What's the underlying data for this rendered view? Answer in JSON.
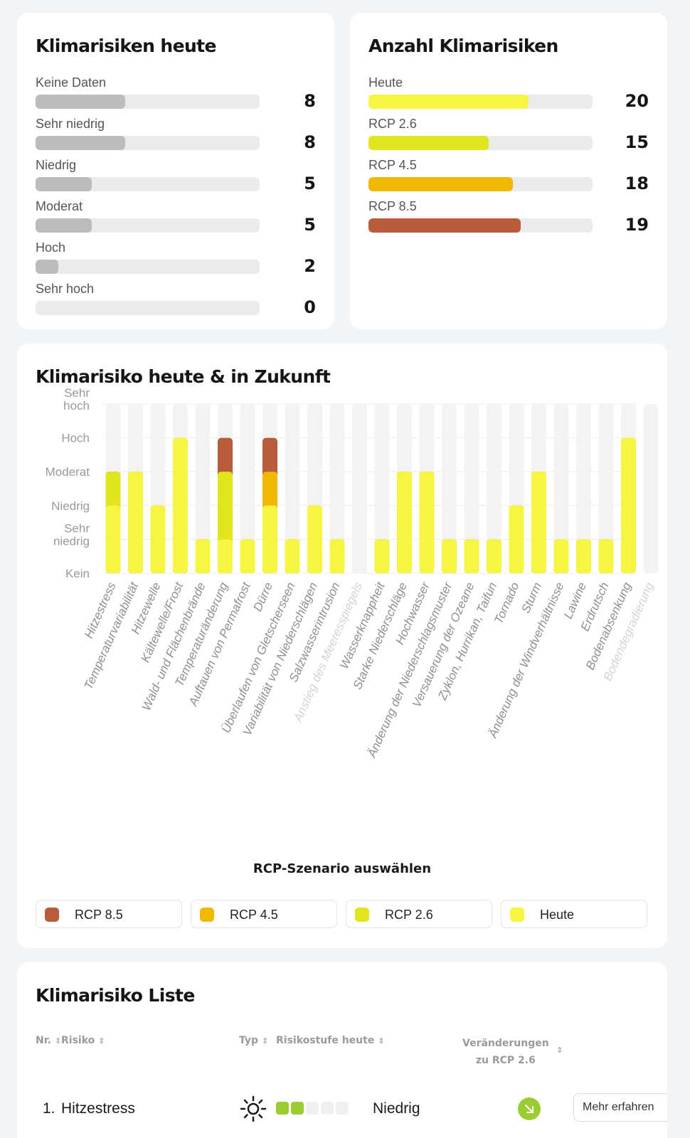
{
  "risks_today": {
    "title": "Klimarisiken heute",
    "max": 20,
    "items": [
      {
        "label": "Keine Daten",
        "value": 8
      },
      {
        "label": "Sehr niedrig",
        "value": 8
      },
      {
        "label": "Niedrig",
        "value": 5
      },
      {
        "label": "Moderat",
        "value": 5
      },
      {
        "label": "Hoch",
        "value": 2
      },
      {
        "label": "Sehr hoch",
        "value": 0
      }
    ],
    "bar_color": "#bcbcbc"
  },
  "risk_count": {
    "title": "Anzahl Klimarisiken",
    "max": 28,
    "items": [
      {
        "label": "Heute",
        "value": 20,
        "color": "#f5f542"
      },
      {
        "label": "RCP 2.6",
        "value": 15,
        "color": "#e0e51e"
      },
      {
        "label": "RCP 4.5",
        "value": 18,
        "color": "#f0b800"
      },
      {
        "label": "RCP 8.5",
        "value": 19,
        "color": "#b85c3c"
      }
    ]
  },
  "future_chart": {
    "title": "Klimarisiko heute & in Zukunft",
    "scenario_title": "RCP-Szenario auswählen",
    "legend": [
      {
        "label": "RCP 8.5",
        "color": "#b85c3c"
      },
      {
        "label": "RCP 4.5",
        "color": "#f0b800"
      },
      {
        "label": "RCP 2.6",
        "color": "#e0e51e"
      },
      {
        "label": "Heute",
        "color": "#f5f542"
      }
    ]
  },
  "chart_data": {
    "type": "bar",
    "title": "Klimarisiko heute & in Zukunft",
    "y_levels": [
      "Kein",
      "Sehr niedrig",
      "Niedrig",
      "Moderat",
      "Hoch",
      "Sehr hoch"
    ],
    "ylim": [
      0,
      5
    ],
    "categories": [
      "Hitzestress",
      "Temperaturvariabilität",
      "Hitzewelle",
      "Kältewelle/Frost",
      "Wald- und Flächenbrände",
      "Temperaturänderung",
      "Auftauen von Permafrost",
      "Dürre",
      "Überlaufen von Gletscherseen",
      "Variabilität von Niederschlägen",
      "Salzwasserintrusion",
      "Anstieg des Meeresspiegels",
      "Wasserknappheit",
      "Starke Niederschläge",
      "Hochwasser",
      "Änderung der Niederschlagsmuster",
      "Versauerung der Ozeane",
      "Zyklon, Hurrikan, Taifun",
      "Tornado",
      "Sturm",
      "Änderung der Windverhältnisse",
      "Lawine",
      "Erdrutsch",
      "Bodenabsenkung",
      "Bodendegradierung"
    ],
    "faded_categories": [
      "Anstieg des Meeresspiegels",
      "Bodendegradierung"
    ],
    "series": [
      {
        "name": "Heute",
        "color": "#f5f542",
        "values": [
          2,
          3,
          2,
          4,
          1,
          1,
          1,
          2,
          1,
          2,
          1,
          0,
          1,
          3,
          3,
          1,
          1,
          1,
          2,
          3,
          1,
          1,
          1,
          4,
          0
        ]
      },
      {
        "name": "RCP 2.6",
        "color": "#e0e51e",
        "values": [
          3,
          3,
          2,
          4,
          1,
          3,
          1,
          2,
          1,
          2,
          1,
          0,
          1,
          3,
          3,
          1,
          1,
          1,
          2,
          3,
          1,
          1,
          1,
          4,
          0
        ]
      },
      {
        "name": "RCP 4.5",
        "color": "#f0b800",
        "values": [
          3,
          3,
          2,
          4,
          1,
          3,
          1,
          3,
          1,
          2,
          1,
          0,
          1,
          3,
          3,
          1,
          1,
          1,
          2,
          3,
          1,
          1,
          1,
          4,
          0
        ]
      },
      {
        "name": "RCP 8.5",
        "color": "#b85c3c",
        "values": [
          3,
          3,
          2,
          4,
          1,
          4,
          1,
          4,
          1,
          2,
          1,
          0,
          1,
          3,
          3,
          1,
          1,
          1,
          2,
          3,
          1,
          1,
          1,
          4,
          0
        ]
      }
    ],
    "legend_position": "bottom"
  },
  "risk_list": {
    "title": "Klimarisiko Liste",
    "headers": {
      "nr": "Nr.",
      "risk": "Risiko",
      "type": "Typ",
      "level_today": "Risikostufe heute",
      "changes_line1": "Veränderungen",
      "changes_line2": "zu RCP 2.6"
    },
    "sort_icon": "sort-arrows-icon",
    "rows": [
      {
        "nr": "1.",
        "name": "Hitzestress",
        "type_icon": "sun-icon",
        "level": 2,
        "level_max": 5,
        "level_label": "Niedrig",
        "trend_icon": "arrow-down-right-icon",
        "more_label": "Mehr erfahren"
      }
    ],
    "level_color": "#9acd32"
  }
}
